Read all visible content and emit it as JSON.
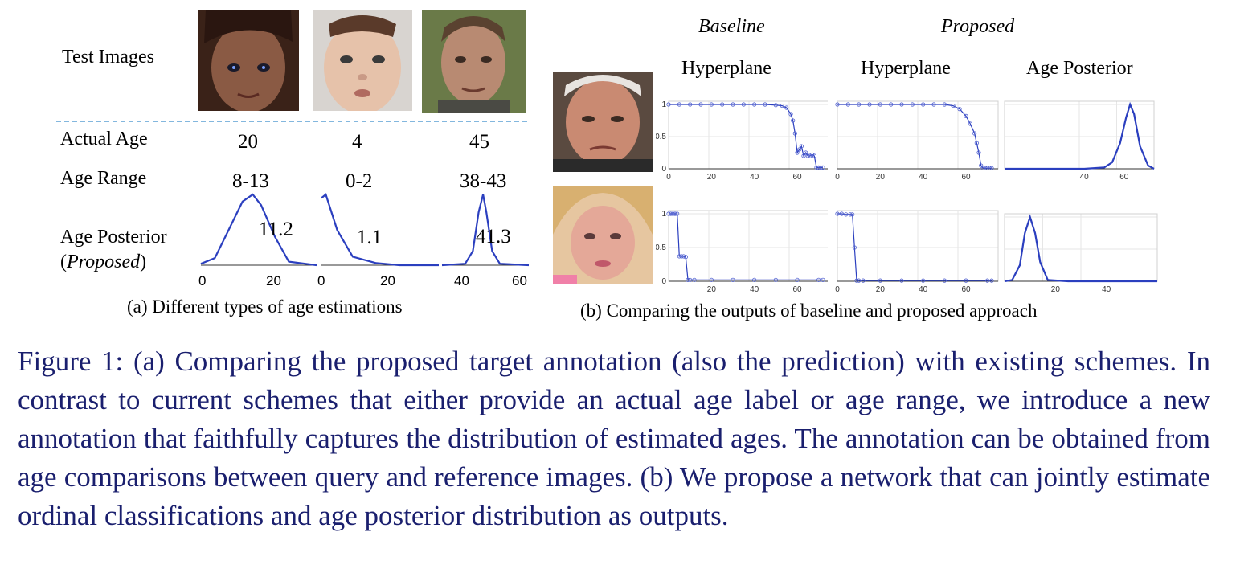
{
  "panel_a": {
    "row_labels": {
      "test_images": "Test Images",
      "actual_age": "Actual Age",
      "age_range": "Age Range",
      "age_posterior_line1": "Age Posterior",
      "age_posterior_paren_open": "(",
      "age_posterior_proposed": "Proposed",
      "age_posterior_paren_close": ")"
    },
    "columns": [
      {
        "actual_age": "20",
        "age_range": "8-13",
        "posterior_value": "11.2"
      },
      {
        "actual_age": "4",
        "age_range": "0-2",
        "posterior_value": "1.1"
      },
      {
        "actual_age": "45",
        "age_range": "38-43",
        "posterior_value": "41.3"
      }
    ],
    "axis_ticks": [
      "0",
      "20",
      "0",
      "20",
      "40",
      "60"
    ],
    "caption": "(a) Different types of age estimations"
  },
  "panel_b": {
    "group_headers": {
      "baseline": "Baseline",
      "proposed": "Proposed"
    },
    "column_headers": [
      "Hyperplane",
      "Hyperplane",
      "Age Posterior"
    ],
    "caption": "(b) Comparing the outputs of baseline and proposed approach"
  },
  "figure_caption": "Figure 1: (a) Comparing the proposed target annotation (also the prediction) with existing schemes. In contrast to current schemes that either provide an actual age label or age range, we introduce a new annotation that faithfully captures the distribution of estimated ages. The annotation can be obtained from age comparisons between query and reference images. (b) We propose a network that can jointly estimate ordinal classifications and age posterior distribution as outputs.",
  "chart_data": [
    {
      "type": "line",
      "panel": "a",
      "x": [
        0,
        3,
        6,
        9,
        11.2,
        13,
        16,
        19,
        25
      ],
      "y": [
        0.02,
        0.1,
        0.5,
        0.9,
        1.0,
        0.85,
        0.4,
        0.05,
        0.0
      ],
      "xlim": [
        0,
        25
      ],
      "x_ticks": [
        "0",
        "20"
      ]
    },
    {
      "type": "line",
      "panel": "a",
      "x": [
        0,
        1.1,
        4,
        8,
        14,
        20,
        30
      ],
      "y": [
        0.95,
        1.0,
        0.5,
        0.12,
        0.03,
        0.0,
        0.0
      ],
      "xlim": [
        0,
        30
      ],
      "x_ticks": [
        "0",
        "20"
      ]
    },
    {
      "type": "line",
      "panel": "a",
      "x": [
        20,
        32,
        36,
        39,
        41.3,
        43,
        46,
        50,
        65
      ],
      "y": [
        0.0,
        0.02,
        0.2,
        0.75,
        1.0,
        0.75,
        0.2,
        0.02,
        0.0
      ],
      "xlim": [
        20,
        65
      ],
      "x_ticks": [
        "40",
        "60"
      ]
    },
    {
      "type": "line",
      "panel": "b",
      "row": 1,
      "column": "Baseline Hyperplane",
      "x": [
        0,
        5,
        10,
        15,
        20,
        25,
        30,
        35,
        40,
        45,
        50,
        53,
        55,
        57,
        58,
        59,
        60,
        61,
        62,
        63,
        64,
        65,
        66,
        67,
        68,
        69,
        70,
        71,
        72
      ],
      "y": [
        1,
        1,
        1,
        1,
        1,
        1,
        1,
        1,
        1,
        1,
        0.99,
        0.98,
        0.95,
        0.85,
        0.75,
        0.55,
        0.25,
        0.3,
        0.35,
        0.2,
        0.25,
        0.2,
        0.2,
        0.22,
        0.2,
        0.02,
        0.02,
        0.02,
        0.02
      ],
      "xlim": [
        0,
        75
      ],
      "ylim": [
        0,
        1
      ],
      "x_ticks": [
        "0",
        "20",
        "40",
        "60"
      ],
      "y_ticks": [
        "0",
        "0.5",
        "1"
      ]
    },
    {
      "type": "line",
      "panel": "b",
      "row": 1,
      "column": "Proposed Hyperplane",
      "x": [
        0,
        5,
        10,
        15,
        20,
        25,
        30,
        35,
        40,
        45,
        50,
        54,
        57,
        60,
        62,
        64,
        65,
        66,
        67,
        68,
        69,
        70,
        71,
        72
      ],
      "y": [
        1,
        1,
        1,
        1,
        1,
        1,
        1,
        1,
        1,
        1,
        1,
        0.98,
        0.93,
        0.82,
        0.7,
        0.55,
        0.4,
        0.25,
        0.05,
        0.01,
        0.01,
        0.01,
        0.01,
        0.01
      ],
      "xlim": [
        0,
        75
      ],
      "ylim": [
        0,
        1
      ],
      "x_ticks": [
        "0",
        "20",
        "40",
        "60"
      ]
    },
    {
      "type": "line",
      "panel": "b",
      "row": 1,
      "column": "Age Posterior",
      "x": [
        0,
        40,
        50,
        54,
        58,
        61,
        63,
        65,
        68,
        72,
        75
      ],
      "y": [
        0,
        0,
        0.02,
        0.1,
        0.4,
        0.8,
        1.0,
        0.85,
        0.35,
        0.05,
        0
      ],
      "xlim": [
        0,
        75
      ],
      "x_ticks": [
        "40",
        "60"
      ]
    },
    {
      "type": "line",
      "panel": "b",
      "row": 2,
      "column": "Baseline Hyperplane",
      "x": [
        0,
        1,
        2,
        3,
        4,
        5,
        6,
        7,
        8,
        9,
        10,
        12,
        20,
        30,
        40,
        50,
        60,
        70,
        72
      ],
      "y": [
        1,
        1,
        1,
        1,
        1,
        0.37,
        0.37,
        0.37,
        0.36,
        0.02,
        0.02,
        0.02,
        0.02,
        0.02,
        0.02,
        0.02,
        0.02,
        0.02,
        0.02
      ],
      "xlim": [
        0,
        75
      ],
      "ylim": [
        0,
        1
      ],
      "x_ticks": [
        "20",
        "40",
        "60"
      ],
      "y_ticks": [
        "0",
        "0.5",
        "1"
      ]
    },
    {
      "type": "line",
      "panel": "b",
      "row": 2,
      "column": "Proposed Hyperplane",
      "x": [
        0,
        2,
        4,
        6,
        7,
        8,
        9,
        10,
        12,
        20,
        30,
        40,
        50,
        60,
        70,
        72
      ],
      "y": [
        1,
        1,
        0.99,
        0.99,
        0.99,
        0.5,
        0.01,
        0.01,
        0.01,
        0.01,
        0.01,
        0.01,
        0.01,
        0.01,
        0.01,
        0.01
      ],
      "xlim": [
        0,
        75
      ],
      "ylim": [
        0,
        1
      ],
      "x_ticks": [
        "0",
        "20",
        "40",
        "60"
      ]
    },
    {
      "type": "line",
      "panel": "b",
      "row": 2,
      "column": "Age Posterior",
      "x": [
        0,
        3,
        6,
        8,
        10,
        12,
        14,
        17,
        25,
        60
      ],
      "y": [
        0,
        0.02,
        0.25,
        0.75,
        1.0,
        0.75,
        0.3,
        0.02,
        0,
        0
      ],
      "xlim": [
        0,
        60
      ],
      "x_ticks": [
        "20",
        "40"
      ]
    }
  ]
}
